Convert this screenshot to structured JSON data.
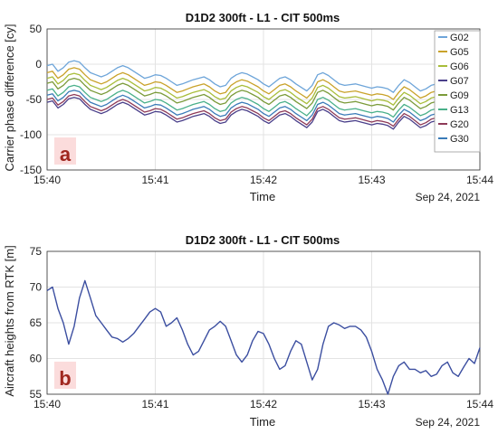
{
  "chart_data": [
    {
      "type": "line",
      "panel_label": "a",
      "title": "D1D2 300ft - L1 - CIT 500ms",
      "xlabel": "Time",
      "ylabel": "Carrier phase difference [cy]",
      "date_label": "Sep 24, 2021",
      "x_ticks": [
        "15:40",
        "15:41",
        "15:42",
        "15:43",
        "15:44"
      ],
      "x_range_minutes": [
        0,
        4
      ],
      "ylim": [
        -150,
        50
      ],
      "y_ticks": [
        -150,
        -100,
        -50,
        0,
        50
      ],
      "grid": true,
      "legend_position": "top-right inside",
      "base_curve": {
        "x": [
          0,
          0.05,
          0.1,
          0.15,
          0.2,
          0.25,
          0.3,
          0.35,
          0.4,
          0.45,
          0.5,
          0.55,
          0.6,
          0.65,
          0.7,
          0.75,
          0.8,
          0.85,
          0.9,
          0.95,
          1.0,
          1.05,
          1.1,
          1.15,
          1.2,
          1.25,
          1.3,
          1.35,
          1.4,
          1.45,
          1.5,
          1.55,
          1.6,
          1.65,
          1.7,
          1.75,
          1.8,
          1.85,
          1.9,
          1.95,
          2.0,
          2.05,
          2.1,
          2.15,
          2.2,
          2.25,
          2.3,
          2.35,
          2.4,
          2.45,
          2.5,
          2.55,
          2.6,
          2.65,
          2.7,
          2.75,
          2.8,
          2.85,
          2.9,
          2.95,
          3.0,
          3.05,
          3.1,
          3.15,
          3.2,
          3.25,
          3.3,
          3.35,
          3.4,
          3.45,
          3.5,
          3.55,
          3.6,
          3.65,
          3.7,
          3.75,
          3.8,
          3.85,
          3.9,
          3.95,
          4.0
        ],
        "y": [
          -2,
          0,
          -10,
          -5,
          3,
          5,
          3,
          -5,
          -12,
          -15,
          -18,
          -15,
          -10,
          -5,
          -2,
          -5,
          -10,
          -15,
          -20,
          -18,
          -15,
          -16,
          -20,
          -25,
          -30,
          -28,
          -25,
          -22,
          -20,
          -18,
          -22,
          -28,
          -32,
          -30,
          -20,
          -15,
          -12,
          -14,
          -18,
          -22,
          -28,
          -32,
          -26,
          -20,
          -18,
          -22,
          -28,
          -33,
          -38,
          -30,
          -15,
          -12,
          -16,
          -22,
          -28,
          -30,
          -29,
          -28,
          -30,
          -32,
          -34,
          -32,
          -33,
          -35,
          -40,
          -30,
          -22,
          -26,
          -32,
          -38,
          -35,
          -30,
          -28,
          -30,
          -34,
          -30,
          -26,
          -28,
          -32,
          -34,
          -36
        ]
      },
      "series": [
        {
          "name": "G02",
          "color": "#6ea5d9",
          "offset": 0
        },
        {
          "name": "G05",
          "color": "#c9a22a",
          "offset": -10
        },
        {
          "name": "G06",
          "color": "#a8bd3a",
          "offset": -18
        },
        {
          "name": "G07",
          "color": "#4a3f8a",
          "offset": -52
        },
        {
          "name": "G09",
          "color": "#7b9b3a",
          "offset": -25
        },
        {
          "name": "G13",
          "color": "#4ab08a",
          "offset": -35
        },
        {
          "name": "G20",
          "color": "#8e3a58",
          "offset": -48
        },
        {
          "name": "G30",
          "color": "#3a7bb8",
          "offset": -42
        }
      ]
    },
    {
      "type": "line",
      "panel_label": "b",
      "title": "D1D2 300ft - L1 - CIT 500ms",
      "xlabel": "Time",
      "ylabel": "Aircraft heights from RTK [m]",
      "date_label": "Sep 24, 2021",
      "x_ticks": [
        "15:40",
        "15:41",
        "15:42",
        "15:43",
        "15:44"
      ],
      "x_range_minutes": [
        0,
        4
      ],
      "ylim": [
        55,
        75
      ],
      "y_ticks": [
        55,
        60,
        65,
        70,
        75
      ],
      "grid": true,
      "series": [
        {
          "name": "",
          "color": "#3b4ea0",
          "x": [
            0,
            0.05,
            0.1,
            0.15,
            0.2,
            0.25,
            0.3,
            0.35,
            0.4,
            0.45,
            0.5,
            0.55,
            0.6,
            0.65,
            0.7,
            0.75,
            0.8,
            0.85,
            0.9,
            0.95,
            1.0,
            1.05,
            1.1,
            1.15,
            1.2,
            1.25,
            1.3,
            1.35,
            1.4,
            1.45,
            1.5,
            1.55,
            1.6,
            1.65,
            1.7,
            1.75,
            1.8,
            1.85,
            1.9,
            1.95,
            2.0,
            2.05,
            2.1,
            2.15,
            2.2,
            2.25,
            2.3,
            2.35,
            2.4,
            2.45,
            2.5,
            2.55,
            2.6,
            2.65,
            2.7,
            2.75,
            2.8,
            2.85,
            2.9,
            2.95,
            3.0,
            3.05,
            3.1,
            3.15,
            3.2,
            3.25,
            3.3,
            3.35,
            3.4,
            3.45,
            3.5,
            3.55,
            3.6,
            3.65,
            3.7,
            3.75,
            3.8,
            3.85,
            3.9,
            3.95,
            4.0
          ],
          "y": [
            69.5,
            70.0,
            67.0,
            65.0,
            62.0,
            64.5,
            68.5,
            70.9,
            68.5,
            66.0,
            65.0,
            64.0,
            63.0,
            62.8,
            62.3,
            62.8,
            63.5,
            64.5,
            65.5,
            66.5,
            67.0,
            66.5,
            64.5,
            65.0,
            65.7,
            64.0,
            62.0,
            60.5,
            61.0,
            62.5,
            64.0,
            64.5,
            65.2,
            64.5,
            62.5,
            60.5,
            59.5,
            60.5,
            62.5,
            63.8,
            63.5,
            62.0,
            60.0,
            58.5,
            59.0,
            61.0,
            62.5,
            62.0,
            59.5,
            57.0,
            58.5,
            62.0,
            64.5,
            65.0,
            64.7,
            64.2,
            64.5,
            64.5,
            64.0,
            63.0,
            61.0,
            58.5,
            57.0,
            55.0,
            57.5,
            59.0,
            59.5,
            58.5,
            58.5,
            58.0,
            58.3,
            57.5,
            57.8,
            59.0,
            59.5,
            58.0,
            57.5,
            58.8,
            60.0,
            59.3,
            61.5
          ]
        }
      ]
    }
  ]
}
